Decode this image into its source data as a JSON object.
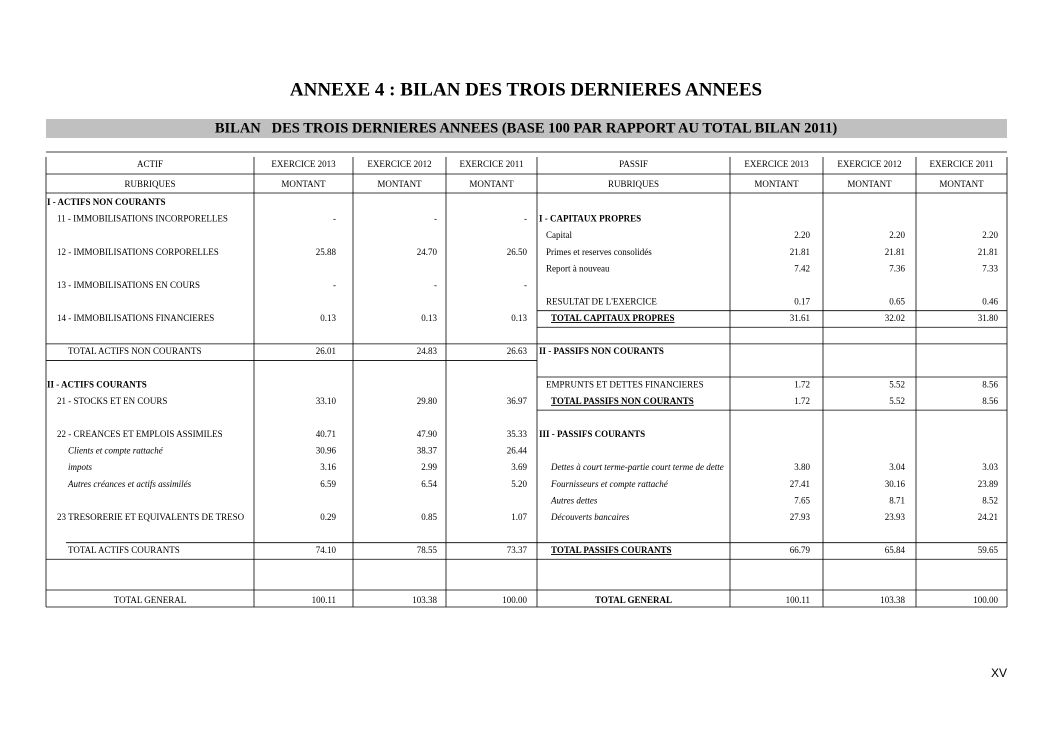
{
  "header": {
    "title": "ANNEXE 4 : BILAN DES TROIS DERNIERES ANNEES",
    "subtitle": "BILAN   DES TROIS DERNIERES ANNEES (BASE 100 PAR RAPPORT AU TOTAL BILAN 2011)"
  },
  "table": {
    "head1": [
      "ACTIF",
      "EXERCICE 2013",
      "EXERCICE 2012",
      "EXERCICE 2011",
      "PASSIF",
      "EXERCICE 2013",
      "EXERCICE 2012",
      "EXERCICE 2011"
    ],
    "head2": [
      "RUBRIQUES",
      "MONTANT",
      "MONTANT",
      "MONTANT",
      "RUBRIQUES",
      "MONTANT",
      "MONTANT",
      "MONTANT"
    ],
    "rows": [
      [
        "I - ACTIFS NON COURANTS",
        null,
        null,
        null,
        null,
        null,
        null,
        null
      ],
      [
        "11 - IMMOBILISATIONS INCORPORELLES",
        "-",
        "-",
        "-",
        "I - CAPITAUX PROPRES",
        null,
        null,
        null
      ],
      [
        null,
        null,
        null,
        null,
        "Capital",
        "2.20",
        "2.20",
        "2.20"
      ],
      [
        "12 - IMMOBILISATIONS CORPORELLES",
        "25.88",
        "24.70",
        "26.50",
        "Primes et reserves consolidés",
        "21.81",
        "21.81",
        "21.81"
      ],
      [
        null,
        null,
        null,
        null,
        "Report à nouveau",
        "7.42",
        "7.36",
        "7.33"
      ],
      [
        "13 - IMMOBILISATIONS EN COURS",
        "-",
        "-",
        "-",
        null,
        null,
        null,
        null
      ],
      [
        null,
        null,
        null,
        null,
        "RESULTAT DE L'EXERCICE",
        "0.17",
        "0.65",
        "0.46"
      ],
      [
        "14 - IMMOBILISATIONS FINANCIERES",
        "0.13",
        "0.13",
        "0.13",
        "TOTAL CAPITAUX PROPRES",
        "31.61",
        "32.02",
        "31.80"
      ],
      [
        null,
        null,
        null,
        null,
        null,
        null,
        null,
        null
      ],
      [
        "TOTAL ACTIFS NON COURANTS",
        "26.01",
        "24.83",
        "26.63",
        "II - PASSIFS NON COURANTS",
        null,
        null,
        null
      ],
      [
        null,
        null,
        null,
        null,
        null,
        null,
        null,
        null
      ],
      [
        "II - ACTIFS COURANTS",
        null,
        null,
        null,
        "EMPRUNTS ET DETTES FINANCIERES",
        "1.72",
        "5.52",
        "8.56"
      ],
      [
        "21 - STOCKS ET EN COURS",
        "33.10",
        "29.80",
        "36.97",
        "TOTAL PASSIFS NON COURANTS",
        "1.72",
        "5.52",
        "8.56"
      ],
      [
        null,
        null,
        null,
        null,
        null,
        null,
        null,
        null
      ],
      [
        "22 - CREANCES ET EMPLOIS ASSIMILES",
        "40.71",
        "47.90",
        "35.33",
        "III - PASSIFS COURANTS",
        null,
        null,
        null
      ],
      [
        "Clients et compte rattaché",
        "30.96",
        "38.37",
        "26.44",
        null,
        null,
        null,
        null
      ],
      [
        "impots",
        "3.16",
        "2.99",
        "3.69",
        "Dettes à court terme-partie court terme de dette",
        "3.80",
        "3.04",
        "3.03"
      ],
      [
        "Autres créances et actifs assimilés",
        "6.59",
        "6.54",
        "5.20",
        "Fournisseurs et compte rattaché",
        "27.41",
        "30.16",
        "23.89"
      ],
      [
        null,
        null,
        null,
        null,
        "Autres dettes",
        "7.65",
        "8.71",
        "8.52"
      ],
      [
        "23 TRESORERIE ET EQUIVALENTS DE TRESO",
        "0.29",
        "0.85",
        "1.07",
        "Découverts  bancaires",
        "27.93",
        "23.93",
        "24.21"
      ],
      [
        null,
        null,
        null,
        null,
        null,
        null,
        null,
        null
      ],
      [
        "TOTAL ACTIFS  COURANTS",
        "74.10",
        "78.55",
        "73.37",
        "TOTAL PASSIFS  COURANTS",
        "66.79",
        "65.84",
        "59.65"
      ]
    ],
    "total": [
      "TOTAL GENERAL",
      "100.11",
      "103.38",
      "100.00",
      "TOTAL GENERAL",
      "100.11",
      "103.38",
      "100.00"
    ]
  },
  "footer": {
    "page": "XV"
  }
}
